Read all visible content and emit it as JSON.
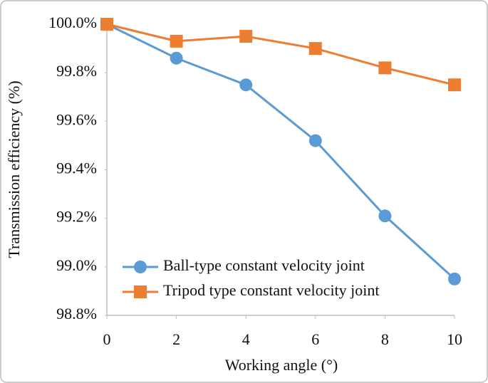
{
  "chart_data": {
    "type": "line",
    "x_label": "Working angle (°)",
    "y_label": "Transmission efficiency (%)",
    "x": [
      0,
      2,
      4,
      6,
      8,
      10
    ],
    "xlim": [
      0,
      10
    ],
    "xticks": [
      0,
      2,
      4,
      6,
      8,
      10
    ],
    "ylim": [
      98.8,
      100.0
    ],
    "yticks": [
      {
        "value": 98.8,
        "label": "98.8%"
      },
      {
        "value": 99.0,
        "label": "99.0%"
      },
      {
        "value": 99.2,
        "label": "99.2%"
      },
      {
        "value": 99.4,
        "label": "99.4%"
      },
      {
        "value": 99.6,
        "label": "99.6%"
      },
      {
        "value": 99.8,
        "label": "99.8%"
      },
      {
        "value": 100.0,
        "label": "100.0%"
      }
    ],
    "grid": false,
    "legend": "lower left",
    "series": [
      {
        "name": "Ball-type constant velocity joint",
        "color": "#5b9bd5",
        "marker": "circle",
        "values": [
          100.0,
          99.86,
          99.75,
          99.52,
          99.21,
          98.95
        ]
      },
      {
        "name": "Tripod type constant velocity joint",
        "color": "#ed7d31",
        "marker": "square",
        "values": [
          100.0,
          99.93,
          99.95,
          99.9,
          99.82,
          99.75
        ]
      }
    ]
  }
}
